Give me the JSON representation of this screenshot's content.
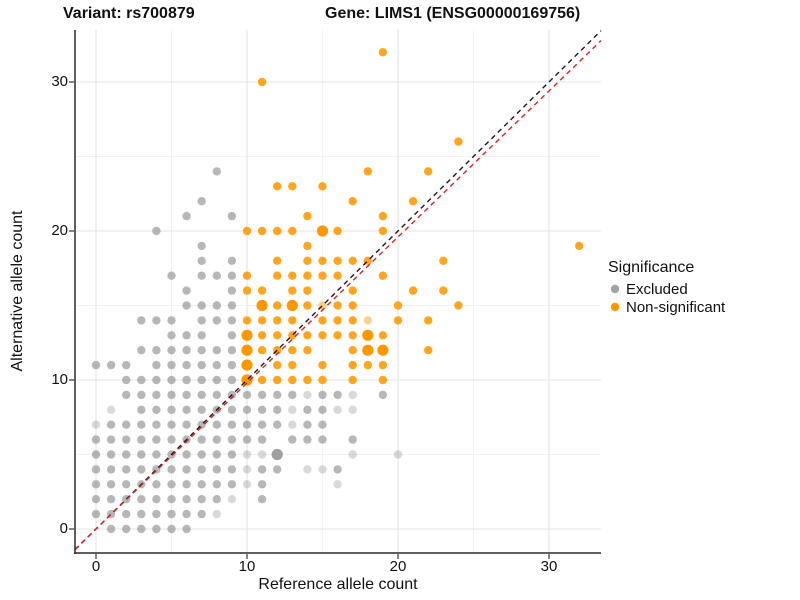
{
  "titles": {
    "variant": "Variant: rs700879",
    "gene": "Gene: LIMS1 (ENSG00000169756)"
  },
  "chart_data": {
    "type": "scatter",
    "title_left": "Variant: rs700879",
    "title_right": "Gene: LIMS1 (ENSG00000169756)",
    "xlabel": "Reference allele count",
    "ylabel": "Alternative allele count",
    "x_ticks": [
      0,
      10,
      20,
      30
    ],
    "y_ticks": [
      0,
      10,
      20,
      30
    ],
    "xlim": [
      -1.4,
      33.4
    ],
    "ylim": [
      -1.6,
      33.5
    ],
    "grid": "major+minor",
    "colors": {
      "excluded": "#8a8a8a",
      "non_significant": "#ff9800",
      "identity_line": "#1a1a1a",
      "fit_line": "#dd2222",
      "grid_major": "#e4e4e4",
      "grid_minor": "#f1f1f1",
      "axis_line": "#2a2a2a"
    },
    "legend": {
      "title": "Significance",
      "position": "right",
      "items": [
        {
          "label": "Excluded",
          "color": "#a3a3a3"
        },
        {
          "label": "Non-significant",
          "color": "#ff9800"
        }
      ]
    },
    "lines": [
      {
        "name": "identity",
        "style": "dashed",
        "slope": 1.0,
        "intercept": 0,
        "color": "#1a1a1a"
      },
      {
        "name": "fit",
        "style": "dashed",
        "slope": 0.98,
        "intercept": 0,
        "color": "#dd2222"
      }
    ],
    "point_size_key": "each point is [x, y, s] with s: 0=faint, 1=normal, 2=large (default 1)",
    "series": [
      {
        "name": "Excluded",
        "color": "#8a8a8a",
        "points": [
          [
            1,
            0
          ],
          [
            2,
            0
          ],
          [
            3,
            0
          ],
          [
            4,
            0
          ],
          [
            5,
            0
          ],
          [
            6,
            0
          ],
          [
            0,
            1
          ],
          [
            1,
            1
          ],
          [
            2,
            1
          ],
          [
            3,
            1
          ],
          [
            4,
            1
          ],
          [
            5,
            1
          ],
          [
            6,
            1
          ],
          [
            7,
            1
          ],
          [
            8,
            1,
            0
          ],
          [
            0,
            2
          ],
          [
            1,
            2
          ],
          [
            2,
            2
          ],
          [
            3,
            2
          ],
          [
            4,
            2
          ],
          [
            5,
            2
          ],
          [
            6,
            2
          ],
          [
            7,
            2
          ],
          [
            8,
            2
          ],
          [
            9,
            2,
            0
          ],
          [
            11,
            2
          ],
          [
            0,
            3
          ],
          [
            1,
            3
          ],
          [
            2,
            3
          ],
          [
            3,
            3
          ],
          [
            4,
            3
          ],
          [
            5,
            3
          ],
          [
            6,
            3
          ],
          [
            7,
            3
          ],
          [
            8,
            3
          ],
          [
            9,
            3
          ],
          [
            10,
            3,
            0
          ],
          [
            11,
            3
          ],
          [
            16,
            3,
            0
          ],
          [
            0,
            4
          ],
          [
            1,
            4
          ],
          [
            2,
            4
          ],
          [
            3,
            4
          ],
          [
            4,
            4
          ],
          [
            5,
            4
          ],
          [
            6,
            4
          ],
          [
            7,
            4
          ],
          [
            8,
            4
          ],
          [
            9,
            4
          ],
          [
            10,
            4,
            0
          ],
          [
            11,
            4
          ],
          [
            12,
            4
          ],
          [
            14,
            4,
            0
          ],
          [
            15,
            4,
            0
          ],
          [
            16,
            4
          ],
          [
            0,
            5
          ],
          [
            1,
            5
          ],
          [
            2,
            5
          ],
          [
            3,
            5
          ],
          [
            4,
            5
          ],
          [
            5,
            5
          ],
          [
            6,
            5
          ],
          [
            7,
            5
          ],
          [
            8,
            5
          ],
          [
            9,
            5
          ],
          [
            10,
            5,
            0
          ],
          [
            11,
            5,
            0
          ],
          [
            12,
            5,
            2
          ],
          [
            17,
            5,
            0
          ],
          [
            20,
            5,
            0
          ],
          [
            0,
            6
          ],
          [
            1,
            6
          ],
          [
            2,
            6
          ],
          [
            3,
            6
          ],
          [
            4,
            6
          ],
          [
            5,
            6
          ],
          [
            6,
            6
          ],
          [
            7,
            6
          ],
          [
            8,
            6
          ],
          [
            9,
            6
          ],
          [
            10,
            6
          ],
          [
            11,
            6
          ],
          [
            13,
            6
          ],
          [
            14,
            6
          ],
          [
            15,
            6
          ],
          [
            17,
            6
          ],
          [
            0,
            7,
            0
          ],
          [
            1,
            7
          ],
          [
            2,
            7
          ],
          [
            3,
            7
          ],
          [
            4,
            7
          ],
          [
            5,
            7
          ],
          [
            6,
            7
          ],
          [
            7,
            7
          ],
          [
            8,
            7
          ],
          [
            9,
            7
          ],
          [
            10,
            7
          ],
          [
            11,
            7
          ],
          [
            12,
            7
          ],
          [
            13,
            7,
            0
          ],
          [
            14,
            7
          ],
          [
            15,
            7
          ],
          [
            1,
            8,
            0
          ],
          [
            3,
            8
          ],
          [
            4,
            8
          ],
          [
            5,
            8
          ],
          [
            6,
            8
          ],
          [
            7,
            8
          ],
          [
            8,
            8
          ],
          [
            9,
            8
          ],
          [
            10,
            8
          ],
          [
            11,
            8
          ],
          [
            12,
            8
          ],
          [
            13,
            8,
            0
          ],
          [
            14,
            8
          ],
          [
            15,
            8
          ],
          [
            16,
            8,
            0
          ],
          [
            17,
            8,
            0
          ],
          [
            2,
            9
          ],
          [
            3,
            9
          ],
          [
            4,
            9
          ],
          [
            5,
            9
          ],
          [
            6,
            9
          ],
          [
            7,
            9
          ],
          [
            8,
            9
          ],
          [
            9,
            9
          ],
          [
            10,
            9
          ],
          [
            11,
            9
          ],
          [
            12,
            9
          ],
          [
            13,
            9
          ],
          [
            14,
            9,
            0
          ],
          [
            15,
            9
          ],
          [
            16,
            9
          ],
          [
            17,
            9,
            0
          ],
          [
            19,
            9
          ],
          [
            2,
            10
          ],
          [
            3,
            10
          ],
          [
            4,
            10
          ],
          [
            5,
            10
          ],
          [
            6,
            10
          ],
          [
            7,
            10
          ],
          [
            8,
            10
          ],
          [
            9,
            10
          ],
          [
            0,
            11
          ],
          [
            1,
            11
          ],
          [
            2,
            11
          ],
          [
            4,
            11
          ],
          [
            5,
            11
          ],
          [
            6,
            11
          ],
          [
            7,
            11
          ],
          [
            8,
            11
          ],
          [
            9,
            11
          ],
          [
            3,
            12
          ],
          [
            4,
            12
          ],
          [
            5,
            12
          ],
          [
            6,
            12
          ],
          [
            7,
            12
          ],
          [
            8,
            12
          ],
          [
            9,
            12
          ],
          [
            5,
            13
          ],
          [
            6,
            13
          ],
          [
            7,
            13
          ],
          [
            9,
            13
          ],
          [
            3,
            14
          ],
          [
            4,
            14
          ],
          [
            5,
            14
          ],
          [
            7,
            14
          ],
          [
            8,
            14
          ],
          [
            9,
            14
          ],
          [
            6,
            15
          ],
          [
            7,
            15
          ],
          [
            8,
            15
          ],
          [
            9,
            15
          ],
          [
            6,
            16
          ],
          [
            9,
            16
          ],
          [
            5,
            17
          ],
          [
            7,
            17
          ],
          [
            8,
            17
          ],
          [
            9,
            17
          ],
          [
            7,
            18
          ],
          [
            9,
            18
          ],
          [
            7,
            19
          ],
          [
            4,
            20
          ],
          [
            6,
            21
          ],
          [
            9,
            21
          ],
          [
            7,
            22
          ],
          [
            8,
            24
          ]
        ]
      },
      {
        "name": "Non-significant",
        "color": "#ff9800",
        "points": [
          [
            10,
            10,
            2
          ],
          [
            11,
            10
          ],
          [
            12,
            10
          ],
          [
            13,
            10
          ],
          [
            14,
            10
          ],
          [
            15,
            10
          ],
          [
            17,
            10
          ],
          [
            19,
            10
          ],
          [
            10,
            11,
            2
          ],
          [
            12,
            11
          ],
          [
            13,
            11
          ],
          [
            15,
            11
          ],
          [
            17,
            11
          ],
          [
            18,
            11
          ],
          [
            19,
            11
          ],
          [
            10,
            12,
            2
          ],
          [
            11,
            12
          ],
          [
            12,
            12
          ],
          [
            13,
            12
          ],
          [
            14,
            12
          ],
          [
            17,
            12
          ],
          [
            18,
            12,
            2
          ],
          [
            19,
            12,
            2
          ],
          [
            22,
            12
          ],
          [
            10,
            13,
            2
          ],
          [
            11,
            13
          ],
          [
            12,
            13
          ],
          [
            13,
            13
          ],
          [
            14,
            13
          ],
          [
            15,
            13
          ],
          [
            16,
            13
          ],
          [
            17,
            13
          ],
          [
            18,
            13,
            2
          ],
          [
            19,
            13
          ],
          [
            10,
            14
          ],
          [
            11,
            14
          ],
          [
            12,
            14
          ],
          [
            13,
            14
          ],
          [
            15,
            14
          ],
          [
            16,
            14
          ],
          [
            17,
            14
          ],
          [
            18,
            14,
            0
          ],
          [
            20,
            14
          ],
          [
            22,
            14
          ],
          [
            11,
            15,
            2
          ],
          [
            12,
            15
          ],
          [
            13,
            15,
            2
          ],
          [
            14,
            15
          ],
          [
            15,
            15,
            0
          ],
          [
            16,
            15
          ],
          [
            17,
            15
          ],
          [
            20,
            15
          ],
          [
            24,
            15
          ],
          [
            10,
            16
          ],
          [
            11,
            16
          ],
          [
            13,
            16
          ],
          [
            14,
            16
          ],
          [
            17,
            16
          ],
          [
            21,
            16
          ],
          [
            23,
            16
          ],
          [
            10,
            17
          ],
          [
            12,
            17
          ],
          [
            13,
            17
          ],
          [
            14,
            17
          ],
          [
            15,
            17
          ],
          [
            16,
            17
          ],
          [
            19,
            17
          ],
          [
            12,
            18
          ],
          [
            14,
            18
          ],
          [
            15,
            18
          ],
          [
            16,
            18
          ],
          [
            17,
            18
          ],
          [
            18,
            18
          ],
          [
            23,
            18
          ],
          [
            14,
            19
          ],
          [
            32,
            19
          ],
          [
            10,
            20
          ],
          [
            11,
            20
          ],
          [
            12,
            20
          ],
          [
            13,
            20
          ],
          [
            15,
            20,
            2
          ],
          [
            16,
            20
          ],
          [
            19,
            20
          ],
          [
            14,
            21
          ],
          [
            19,
            21
          ],
          [
            17,
            22
          ],
          [
            21,
            22
          ],
          [
            12,
            23
          ],
          [
            13,
            23
          ],
          [
            15,
            23
          ],
          [
            18,
            24
          ],
          [
            22,
            24
          ],
          [
            24,
            26
          ],
          [
            11,
            30
          ],
          [
            19,
            32
          ]
        ]
      }
    ]
  }
}
